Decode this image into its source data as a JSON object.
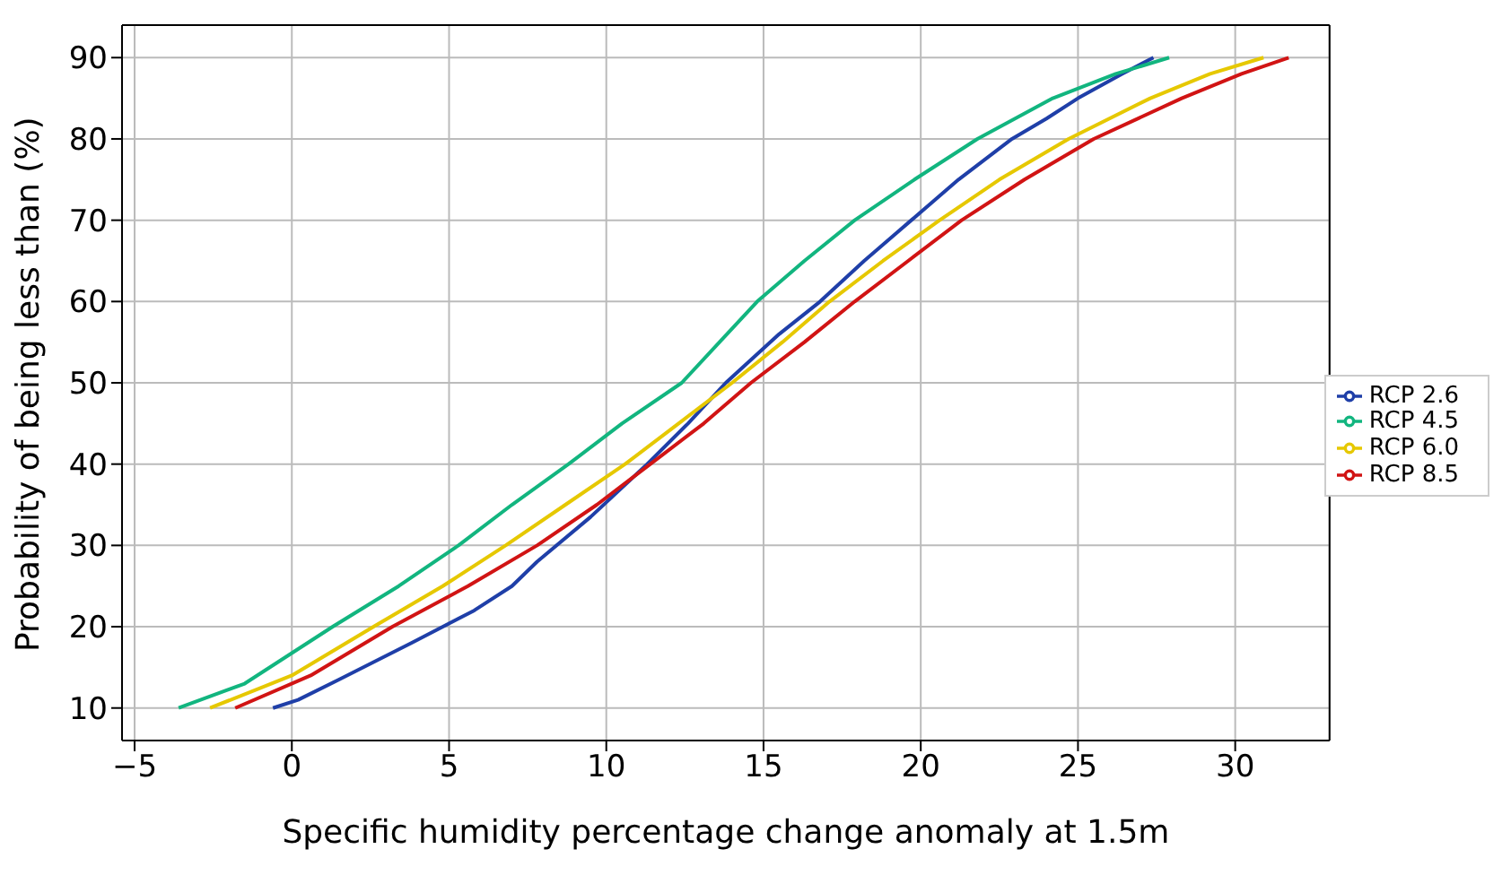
{
  "chart_data": {
    "type": "line",
    "xlabel": "Specific humidity percentage change anomaly at 1.5m",
    "ylabel": "Probability of being less than (%)",
    "xlim": [
      -5.4,
      33
    ],
    "ylim": [
      6,
      94
    ],
    "xticks": [
      -5,
      0,
      5,
      10,
      15,
      20,
      25,
      30
    ],
    "yticks": [
      10,
      20,
      30,
      40,
      50,
      60,
      70,
      80,
      90
    ],
    "grid": true,
    "legend": "right",
    "line_style": "solid",
    "marker": "none",
    "series": [
      {
        "name": "RCP 2.6",
        "color": "#1f3fa8",
        "x": [
          -0.6,
          0.2,
          1.5,
          3.8,
          5.8,
          7,
          7.8,
          9.5,
          11.3,
          12.6,
          13.8,
          15.5,
          16.8,
          18.2,
          19.7,
          21.2,
          22.9,
          24.0,
          25.0,
          26.4,
          27.4
        ],
        "values": [
          10,
          11,
          13.5,
          18,
          22,
          25,
          28,
          33.5,
          40,
          45,
          50,
          56,
          60,
          65,
          70,
          75,
          80,
          82.5,
          85,
          88,
          90
        ]
      },
      {
        "name": "RCP 4.5",
        "color": "#12b57f",
        "x": [
          -3.6,
          -1.5,
          1.3,
          3.4,
          5.3,
          7,
          8.8,
          10.5,
          12.4,
          13.6,
          14.8,
          16.3,
          17.9,
          19.8,
          21.8,
          24.2,
          26.2,
          27.9
        ],
        "values": [
          10,
          13,
          20,
          25,
          30,
          35,
          40,
          45,
          50,
          55,
          60,
          65,
          70,
          75,
          80,
          85,
          88,
          90
        ]
      },
      {
        "name": "RCP 6.0",
        "color": "#e6c800",
        "x": [
          -2.6,
          0,
          2.6,
          4.8,
          6.8,
          8.7,
          10.6,
          12.3,
          14,
          15.6,
          17.1,
          18.8,
          20.6,
          22.5,
          24.7,
          27.3,
          29.2,
          30.9
        ],
        "values": [
          10,
          14,
          20,
          25,
          30,
          35,
          40,
          45,
          50,
          55,
          60,
          65,
          70,
          75,
          80,
          85,
          88,
          90
        ]
      },
      {
        "name": "RCP 8.5",
        "color": "#d11414",
        "x": [
          -1.8,
          0.6,
          3.2,
          5.6,
          7.8,
          9.7,
          11.4,
          13.1,
          14.6,
          16.3,
          17.9,
          19.6,
          21.3,
          23.3,
          25.5,
          28.3,
          30.2,
          31.7
        ],
        "values": [
          10,
          14,
          20,
          25,
          30,
          35,
          40,
          45,
          50,
          55,
          60,
          65,
          70,
          75,
          80,
          85,
          88,
          90
        ]
      }
    ]
  }
}
